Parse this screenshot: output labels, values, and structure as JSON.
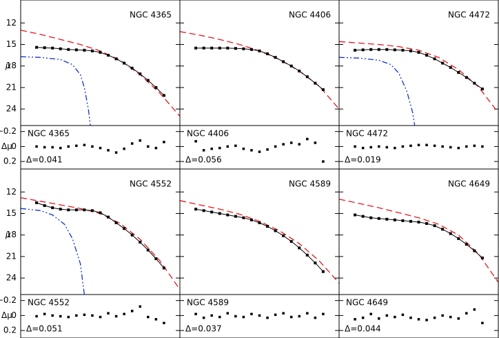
{
  "chart_data": [
    {
      "type": "line",
      "title": "NGC 4365",
      "ylabel": "μ",
      "rlabel": "Δμ",
      "tick_labels": true,
      "xlim": [
        -1.5,
        2.5
      ],
      "ylim": [
        8.8,
        26.3
      ],
      "yticks": [
        12,
        15,
        18,
        21,
        24
      ],
      "rlim": [
        -0.28,
        0.3
      ],
      "rticks": [
        {
          "value": -0.2,
          "label": "−0.2"
        },
        0,
        0.2
      ],
      "profile": {
        "x": [
          -1.1,
          -0.9,
          -0.7,
          -0.5,
          -0.3,
          -0.1,
          0.1,
          0.3,
          0.5,
          0.7,
          0.9,
          1.1,
          1.3,
          1.5,
          1.7,
          1.9,
          2.1
        ],
        "values": [
          15.4,
          15.45,
          15.5,
          15.6,
          15.7,
          15.75,
          15.8,
          15.9,
          16.1,
          16.5,
          17.0,
          17.6,
          18.3,
          19.1,
          20.0,
          21.0,
          22.1
        ]
      },
      "curves": [
        {
          "style": "dashed",
          "color": "#e8141a",
          "x": [
            -1.5,
            -1,
            -0.5,
            0,
            0.5,
            1,
            1.5,
            2,
            2.5
          ],
          "values": [
            13.0,
            13.6,
            14.3,
            15.0,
            15.9,
            17.2,
            19.2,
            21.8,
            25.0
          ]
        },
        {
          "style": "dashdot",
          "color": "#1530d0",
          "x": [
            -1.5,
            -1,
            -0.5,
            -0.2,
            0,
            0.1,
            0.2,
            0.25
          ],
          "values": [
            16.7,
            16.8,
            17.1,
            17.8,
            19.2,
            21.0,
            24.0,
            26.3
          ]
        }
      ],
      "residuals": [
        0.0,
        0.01,
        0.01,
        0.02,
        0.0,
        -0.01,
        -0.02,
        0.0,
        0.02,
        0.05,
        0.08,
        0.03,
        -0.04,
        -0.08,
        0.0,
        0.02,
        -0.06
      ],
      "delta_label": "Δ=0.041"
    },
    {
      "type": "line",
      "title": "NGC 4406",
      "tick_labels": false,
      "xlim": [
        -1.5,
        2.5
      ],
      "ylim": [
        8.8,
        26.3
      ],
      "yticks": [
        12,
        15,
        18,
        21,
        24
      ],
      "rlim": [
        -0.28,
        0.3
      ],
      "rticks": [
        -0.2,
        0,
        0.2
      ],
      "profile": {
        "x": [
          -1.1,
          -0.9,
          -0.7,
          -0.5,
          -0.3,
          -0.1,
          0.1,
          0.3,
          0.5,
          0.7,
          0.9,
          1.1,
          1.3,
          1.5,
          1.7,
          1.9,
          2.1
        ],
        "values": [
          15.5,
          15.5,
          15.5,
          15.5,
          15.5,
          15.55,
          15.6,
          15.7,
          15.9,
          16.3,
          16.8,
          17.4,
          18.0,
          18.7,
          19.5,
          20.4,
          21.3
        ]
      },
      "curves": [
        {
          "style": "dashed",
          "color": "#e8141a",
          "x": [
            -1.5,
            -1,
            -0.5,
            0,
            0.5,
            1,
            1.5,
            2,
            2.5
          ],
          "values": [
            13.2,
            13.7,
            14.3,
            15.0,
            15.9,
            17.1,
            18.7,
            20.8,
            24.0
          ]
        }
      ],
      "residuals": [
        -0.07,
        0.05,
        0.03,
        0.02,
        0.0,
        -0.01,
        0.03,
        0.05,
        0.07,
        0.04,
        0.0,
        -0.03,
        -0.05,
        -0.03,
        -0.1,
        -0.05,
        0.2
      ],
      "delta_label": "Δ=0.056"
    },
    {
      "type": "line",
      "title": "NGC 4472",
      "tick_labels": false,
      "xlim": [
        -1.5,
        2.5
      ],
      "ylim": [
        8.8,
        26.3
      ],
      "yticks": [
        12,
        15,
        18,
        21,
        24
      ],
      "rlim": [
        -0.28,
        0.3
      ],
      "rticks": [
        -0.2,
        0,
        0.2
      ],
      "profile": {
        "x": [
          -1.1,
          -0.9,
          -0.7,
          -0.5,
          -0.3,
          -0.1,
          0.1,
          0.3,
          0.5,
          0.7,
          0.9,
          1.1,
          1.3,
          1.5,
          1.7,
          1.9,
          2.1
        ],
        "values": [
          15.8,
          15.75,
          15.7,
          15.7,
          15.7,
          15.75,
          15.8,
          15.9,
          16.1,
          16.5,
          17.0,
          17.6,
          18.2,
          18.9,
          19.6,
          20.4,
          21.2
        ]
      },
      "curves": [
        {
          "style": "dashed",
          "color": "#e8141a",
          "x": [
            -1.5,
            -1,
            -0.5,
            0,
            0.5,
            1,
            1.5,
            2,
            2.5
          ],
          "values": [
            14.6,
            14.8,
            15.0,
            15.3,
            15.8,
            16.8,
            18.5,
            20.9,
            24.5
          ]
        },
        {
          "style": "dashdot",
          "color": "#1530d0",
          "x": [
            -1.5,
            -1,
            -0.5,
            -0.2,
            0,
            0.2,
            0.35,
            0.4
          ],
          "values": [
            16.8,
            16.9,
            17.2,
            17.8,
            19.0,
            21.5,
            24.5,
            26.3
          ]
        }
      ],
      "residuals": [
        0.0,
        0.02,
        0.01,
        0.0,
        0.01,
        0.02,
        0.0,
        -0.01,
        -0.02,
        -0.02,
        -0.01,
        0.0,
        0.01,
        0.02,
        0.0,
        -0.01,
        0.0
      ],
      "delta_label": "Δ=0.019"
    },
    {
      "type": "line",
      "title": "NGC 4552",
      "ylabel": "μ",
      "rlabel": "Δμ",
      "tick_labels": true,
      "xlim": [
        -1.5,
        2.5
      ],
      "ylim": [
        8.8,
        26.3
      ],
      "yticks": [
        12,
        15,
        18,
        21,
        24
      ],
      "rlim": [
        -0.28,
        0.3
      ],
      "rticks": [
        {
          "value": -0.2,
          "label": "−0.2"
        },
        0,
        0.2
      ],
      "profile": {
        "x": [
          -1.1,
          -0.9,
          -0.7,
          -0.5,
          -0.3,
          -0.1,
          0.1,
          0.3,
          0.5,
          0.7,
          0.9,
          1.1,
          1.3,
          1.5,
          1.7,
          1.9,
          2.1
        ],
        "values": [
          13.5,
          13.9,
          14.2,
          14.4,
          14.5,
          14.5,
          14.5,
          14.6,
          14.9,
          15.5,
          16.3,
          17.1,
          18.0,
          19.0,
          20.1,
          21.3,
          22.6
        ]
      },
      "curves": [
        {
          "style": "dashed",
          "color": "#e8141a",
          "x": [
            -1.5,
            -1,
            -0.5,
            0,
            0.5,
            1,
            1.5,
            2,
            2.5
          ],
          "values": [
            12.8,
            13.3,
            13.8,
            14.3,
            15.0,
            16.4,
            18.6,
            21.6,
            25.6
          ]
        },
        {
          "style": "dashdot",
          "color": "#1530d0",
          "x": [
            -1.5,
            -1,
            -0.7,
            -0.4,
            -0.2,
            0,
            0.1
          ],
          "values": [
            14.3,
            14.6,
            15.2,
            16.5,
            18.5,
            22.0,
            26.3
          ]
        }
      ],
      "residuals": [
        0.01,
        -0.02,
        0.0,
        0.01,
        0.02,
        0.0,
        -0.01,
        0.0,
        0.02,
        -0.03,
        0.01,
        -0.02,
        -0.06,
        -0.12,
        0.02,
        0.05,
        0.1
      ],
      "delta_label": "Δ=0.051"
    },
    {
      "type": "line",
      "title": "NGC 4589",
      "tick_labels": false,
      "xlim": [
        -1.5,
        2.5
      ],
      "ylim": [
        8.8,
        26.3
      ],
      "yticks": [
        12,
        15,
        18,
        21,
        24
      ],
      "rlim": [
        -0.28,
        0.3
      ],
      "rticks": [
        -0.2,
        0,
        0.2
      ],
      "profile": {
        "x": [
          -1.1,
          -0.9,
          -0.7,
          -0.5,
          -0.3,
          -0.1,
          0.1,
          0.3,
          0.5,
          0.7,
          0.9,
          1.1,
          1.3,
          1.5,
          1.7,
          1.9,
          2.1
        ],
        "values": [
          14.4,
          14.6,
          14.8,
          15.0,
          15.2,
          15.4,
          15.6,
          15.9,
          16.3,
          16.8,
          17.4,
          18.1,
          18.9,
          19.8,
          20.8,
          21.9,
          23.1
        ]
      },
      "curves": [
        {
          "style": "dashed",
          "color": "#e8141a",
          "x": [
            -1.5,
            -1,
            -0.5,
            0,
            0.5,
            1,
            1.5,
            2,
            2.5
          ],
          "values": [
            13.2,
            13.8,
            14.4,
            15.1,
            16.1,
            17.4,
            19.2,
            21.6,
            24.7
          ]
        }
      ],
      "residuals": [
        -0.02,
        0.03,
        0.0,
        0.02,
        -0.03,
        0.01,
        0.02,
        -0.02,
        0.0,
        0.03,
        -0.01,
        -0.03,
        0.02,
        0.01,
        -0.03,
        0.03,
        -0.02
      ],
      "delta_label": "Δ=0.037"
    },
    {
      "type": "line",
      "title": "NGC 4649",
      "tick_labels": false,
      "xlim": [
        -1.5,
        2.5
      ],
      "ylim": [
        8.8,
        26.3
      ],
      "yticks": [
        12,
        15,
        18,
        21,
        24
      ],
      "rlim": [
        -0.28,
        0.3
      ],
      "rticks": [
        -0.2,
        0,
        0.2
      ],
      "profile": {
        "x": [
          -1.1,
          -0.9,
          -0.7,
          -0.5,
          -0.3,
          -0.1,
          0.1,
          0.3,
          0.5,
          0.7,
          0.9,
          1.1,
          1.3,
          1.5,
          1.7,
          1.9,
          2.1
        ],
        "values": [
          15.2,
          15.4,
          15.6,
          15.7,
          15.8,
          15.9,
          16.0,
          16.1,
          16.2,
          16.4,
          16.7,
          17.2,
          17.8,
          18.5,
          19.3,
          20.2,
          21.2
        ]
      },
      "curves": [
        {
          "style": "dashed",
          "color": "#e8141a",
          "x": [
            -1.5,
            -1,
            -0.5,
            0,
            0.5,
            1,
            1.5,
            2,
            2.5
          ],
          "values": [
            13.0,
            13.6,
            14.2,
            14.9,
            15.6,
            16.5,
            18.0,
            20.6,
            24.6
          ]
        }
      ],
      "residuals": [
        0.05,
        0.03,
        -0.02,
        0.04,
        0.0,
        0.02,
        -0.01,
        0.03,
        0.05,
        0.06,
        0.03,
        0.0,
        0.02,
        0.04,
        -0.03,
        -0.08,
        0.1
      ],
      "delta_label": "Δ=0.044"
    }
  ]
}
